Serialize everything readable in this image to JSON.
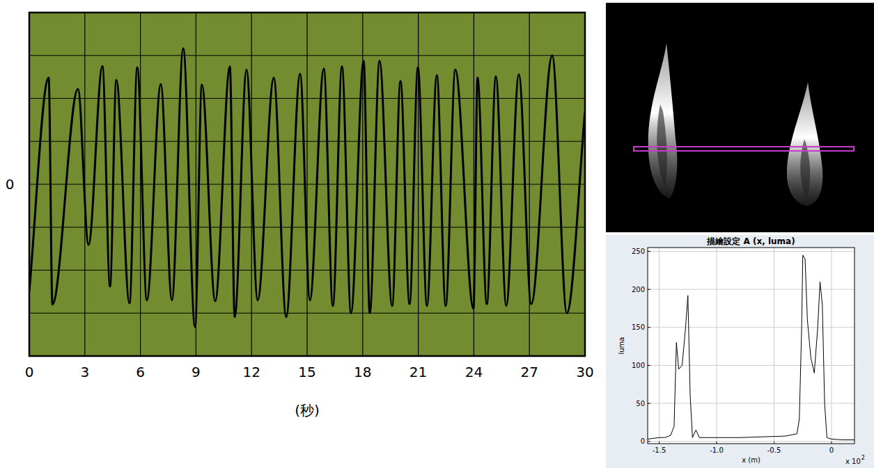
{
  "chart_data": [
    {
      "type": "line",
      "x_label": "(秒)",
      "x": [
        0,
        1.05,
        1.25,
        2.63,
        3.2,
        3.95,
        4.36,
        4.7,
        5.41,
        5.83,
        6.35,
        7.1,
        7.7,
        8.31,
        8.95,
        9.32,
        10.04,
        10.83,
        11.09,
        11.73,
        12.33,
        13.2,
        13.87,
        14.62,
        15.15,
        15.9,
        16.39,
        16.88,
        17.37,
        18.05,
        18.38,
        18.91,
        19.59,
        20.04,
        20.53,
        20.98,
        21.47,
        22.0,
        22.48,
        23.0,
        23.98,
        24.2,
        24.7,
        25.19,
        25.75,
        26.43,
        27.1,
        28.23,
        29.02,
        30
      ],
      "values": [
        -2.5,
        2.48,
        -2.8,
        2.22,
        -1.41,
        2.75,
        -2.38,
        2.43,
        -2.77,
        2.72,
        -2.7,
        2.33,
        -2.7,
        3.16,
        -3.32,
        2.32,
        -2.72,
        2.74,
        -3.09,
        2.67,
        -2.7,
        2.48,
        -3.09,
        2.57,
        -2.7,
        2.69,
        -2.83,
        2.74,
        -3.0,
        2.87,
        -3.0,
        2.87,
        -2.83,
        2.4,
        -2.79,
        2.72,
        -2.83,
        2.54,
        -2.83,
        2.67,
        -2.9,
        2.48,
        -2.79,
        2.51,
        -2.83,
        2.56,
        -2.79,
        3.0,
        -3.0,
        1.7
      ],
      "color": "#000000",
      "xlim": [
        0,
        30
      ],
      "xticks": [
        0,
        3,
        6,
        9,
        12,
        15,
        18,
        21,
        24,
        27,
        30
      ],
      "ylim": [
        -4,
        4
      ],
      "yticks": [
        0
      ],
      "y_gridlines": [
        -4,
        -3,
        -2,
        -1,
        1,
        2,
        3,
        4
      ],
      "grid": true
    },
    {
      "type": "line",
      "title": "描繪設定 A (x, luma)",
      "x_label": "x (m)",
      "y_label": "luma",
      "x_multiplier": "x 10",
      "x_multiplier_exponent": "2",
      "x": [
        -1.6,
        -1.55,
        -1.5,
        -1.45,
        -1.4,
        -1.37,
        -1.35,
        -1.33,
        -1.3,
        -1.27,
        -1.25,
        -1.23,
        -1.21,
        -1.18,
        -1.15,
        -1.0,
        -0.8,
        -0.6,
        -0.4,
        -0.3,
        -0.28,
        -0.26,
        -0.25,
        -0.23,
        -0.21,
        -0.18,
        -0.15,
        -0.12,
        -0.1,
        -0.08,
        -0.06,
        -0.04,
        0,
        0.1,
        0.2
      ],
      "values": [
        3,
        4,
        5,
        5,
        8,
        20,
        130,
        95,
        100,
        150,
        192,
        60,
        5,
        15,
        5,
        5,
        5,
        6,
        7,
        10,
        30,
        150,
        245,
        240,
        160,
        110,
        90,
        150,
        210,
        180,
        50,
        5,
        3,
        2,
        2
      ],
      "color": "#000000",
      "xlim": [
        -1.6,
        0.2
      ],
      "xticks": [
        -1.5,
        {
          "value": -1,
          "label": "-1.0"
        },
        -0.5,
        0
      ],
      "ylim": [
        -3,
        255
      ],
      "yticks": [
        0,
        50,
        100,
        150,
        200,
        250
      ],
      "grid": true
    }
  ]
}
